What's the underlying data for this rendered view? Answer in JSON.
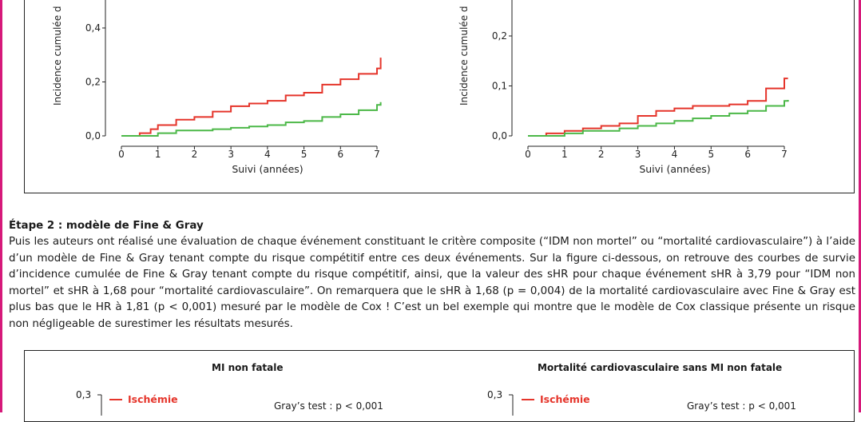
{
  "colors": {
    "red": "#e5352b",
    "green": "#4cb848",
    "accent": "#d6197a"
  },
  "top_charts": {
    "left": {
      "ylabel": "Incidence cumulée d",
      "xlabel": "Suivi (années)",
      "ytick_labels": [
        "0,0",
        "0,2",
        "0,4"
      ],
      "xtick_labels": [
        "0",
        "1",
        "2",
        "3",
        "4",
        "5",
        "6",
        "7"
      ]
    },
    "right": {
      "ylabel": "Incidence cumulée d",
      "xlabel": "Suivi (années)",
      "ytick_labels": [
        "0,0",
        "0,1",
        "0,2"
      ],
      "xtick_labels": [
        "0",
        "1",
        "2",
        "3",
        "4",
        "5",
        "6",
        "7"
      ]
    }
  },
  "chart_data": [
    {
      "type": "line",
      "xlabel": "Suivi (années)",
      "ylabel": "Incidence cumulée d",
      "xlim": [
        0,
        7
      ],
      "y_ticks": [
        0,
        0.2,
        0.4
      ],
      "series": [
        {
          "color": "#e5352b",
          "x": [
            0,
            0.5,
            0.8,
            1.0,
            1.5,
            2.0,
            2.5,
            3.0,
            3.5,
            4.0,
            4.5,
            5.0,
            5.5,
            6.0,
            6.5,
            7.0,
            7.1
          ],
          "y": [
            0.0,
            0.01,
            0.025,
            0.04,
            0.06,
            0.07,
            0.09,
            0.11,
            0.12,
            0.13,
            0.15,
            0.16,
            0.19,
            0.21,
            0.23,
            0.25,
            0.29
          ]
        },
        {
          "color": "#4cb848",
          "x": [
            0,
            0.5,
            1.0,
            1.5,
            2.0,
            2.5,
            3.0,
            3.5,
            4.0,
            4.5,
            5.0,
            5.5,
            6.0,
            6.5,
            7.0,
            7.1
          ],
          "y": [
            0.0,
            0.0,
            0.01,
            0.02,
            0.02,
            0.025,
            0.03,
            0.035,
            0.04,
            0.05,
            0.055,
            0.07,
            0.08,
            0.095,
            0.115,
            0.125
          ]
        }
      ]
    },
    {
      "type": "line",
      "xlabel": "Suivi (années)",
      "ylabel": "Incidence cumulée d",
      "xlim": [
        0,
        7
      ],
      "y_ticks": [
        0,
        0.1,
        0.2
      ],
      "series": [
        {
          "color": "#e5352b",
          "x": [
            0,
            0.5,
            1.0,
            1.5,
            2.0,
            2.5,
            3.0,
            3.5,
            4.0,
            4.5,
            5.0,
            5.5,
            6.0,
            6.5,
            7.0,
            7.1
          ],
          "y": [
            0.0,
            0.005,
            0.01,
            0.015,
            0.02,
            0.025,
            0.04,
            0.05,
            0.055,
            0.06,
            0.06,
            0.063,
            0.07,
            0.095,
            0.115,
            0.115
          ]
        },
        {
          "color": "#4cb848",
          "x": [
            0,
            0.5,
            1.0,
            1.5,
            2.0,
            2.5,
            3.0,
            3.5,
            4.0,
            4.5,
            5.0,
            5.5,
            6.0,
            6.5,
            7.0,
            7.1
          ],
          "y": [
            0.0,
            0.0,
            0.005,
            0.01,
            0.01,
            0.015,
            0.02,
            0.025,
            0.03,
            0.035,
            0.04,
            0.045,
            0.05,
            0.06,
            0.07,
            0.072
          ]
        }
      ]
    }
  ],
  "section": {
    "title": "Étape 2 : modèle de Fine & Gray",
    "paragraph": "Puis les auteurs ont réalisé une évaluation de chaque événement constituant le critère composite (“IDM non mortel” ou “mortalité cardiovasculaire”) à l’aide d’un modèle de Fine & Gray tenant compte du risque compétitif entre ces deux événements. Sur la figure ci-dessous, on retrouve des courbes de survie d’incidence cumulée de Fine & Gray tenant compte du risque compétitif, ainsi, que la valeur des sHR pour chaque événement sHR à 3,79 pour “IDM non mortel” et sHR à 1,68 pour “mortalité cardiovasculaire”. On remarquera que le sHR à 1,68 (p = 0,004) de la mortalité cardiovasculaire avec Fine & Gray est plus bas que le HR à 1,81 (p < 0,001) mesuré par le modèle de Cox ! C’est un bel exemple qui montre que le modèle de Cox classique présente un risque non négligeable de surestimer les résultats mesurés."
  },
  "bottom_panels": {
    "left": {
      "title": "MI non fatale",
      "ytick_top": "0,3",
      "legend_label": "Ischémie",
      "stat": "Gray’s test : p < 0,001"
    },
    "right": {
      "title": "Mortalité cardiovasculaire sans MI non fatale",
      "ytick_top": "0,3",
      "legend_label": "Ischémie",
      "stat": "Gray’s test : p < 0,001"
    }
  }
}
